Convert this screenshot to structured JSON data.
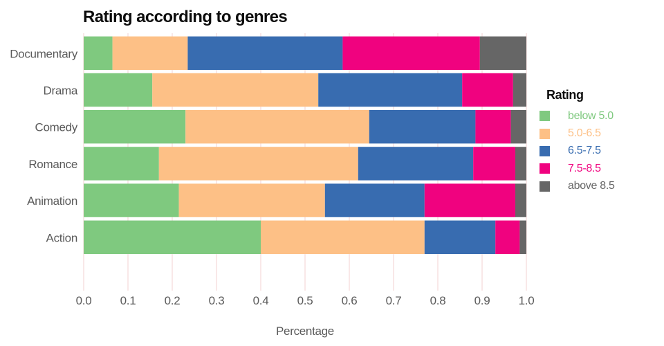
{
  "chart_data": {
    "type": "bar",
    "orientation": "horizontal",
    "stacked": true,
    "title": "Rating according to genres",
    "xlabel": "Percentage",
    "ylabel": "",
    "legend_title": "Rating",
    "legend_position": "right",
    "grid": "vertical",
    "xlim": [
      0.0,
      1.0
    ],
    "x_ticks": [
      "0.0",
      "0.1",
      "0.2",
      "0.3",
      "0.4",
      "0.5",
      "0.6",
      "0.7",
      "0.8",
      "0.9",
      "1.0"
    ],
    "categories": [
      "Documentary",
      "Drama",
      "Comedy",
      "Romance",
      "Animation",
      "Action"
    ],
    "series": [
      {
        "name": "below 5.0",
        "color": "#7FC97F",
        "values": [
          0.065,
          0.155,
          0.23,
          0.17,
          0.215,
          0.4
        ]
      },
      {
        "name": "5.0-6.5",
        "color": "#FDC086",
        "values": [
          0.17,
          0.375,
          0.415,
          0.45,
          0.33,
          0.37
        ]
      },
      {
        "name": "6.5-7.5",
        "color": "#386CB0",
        "values": [
          0.35,
          0.325,
          0.24,
          0.26,
          0.225,
          0.16
        ]
      },
      {
        "name": "7.5-8.5",
        "color": "#F0027F",
        "values": [
          0.31,
          0.115,
          0.08,
          0.095,
          0.205,
          0.055
        ]
      },
      {
        "name": "above 8.5",
        "color": "#666666",
        "values": [
          0.105,
          0.03,
          0.035,
          0.025,
          0.025,
          0.015
        ]
      }
    ]
  },
  "colors": {
    "grid": "#f6dbdb",
    "axis_text": "#5a5a5a",
    "title_text": "#0d0d0d",
    "background": "#ffffff"
  }
}
